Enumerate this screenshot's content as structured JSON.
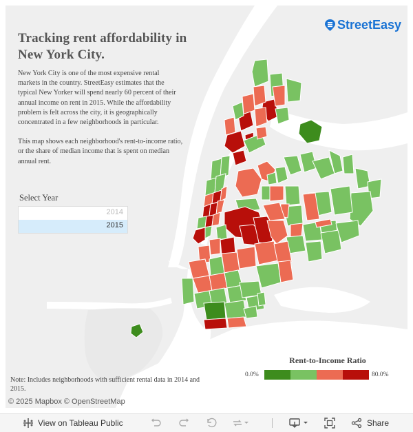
{
  "title": "Tracking rent affordability in New York City.",
  "intro_p1": "New York City is one of the most expensive rental markets in the country. StreetEasy estimates that the typical New Yorker will spend nearly 60 percent of their annual income on rent in 2015. While the affordability problem is felt across the city, it is geographically concentrated in a few neighborhoods in particular.",
  "intro_p2": "This map shows each neighborhood's rent-to-income ratio, or the share of median income that is spent on median annual rent.",
  "logo_text": "StreetEasy",
  "filter": {
    "label": "Select Year",
    "options": [
      {
        "label": "2014",
        "selected": false
      },
      {
        "label": "2015",
        "selected": true
      }
    ]
  },
  "legend": {
    "title": "Rent-to-Income Ratio",
    "min_label": "0.0%",
    "max_label": "80.0%",
    "colors": [
      "#3d8c1d",
      "#79c262",
      "#ec6b53",
      "#b80f0a"
    ]
  },
  "note": "Note: Includes neighborhoods with sufficient rental data in 2014 and 2015.",
  "attribution": "© 2025 Mapbox  © OpenStreetMap",
  "toolbar": {
    "view_label": "View on Tableau Public",
    "share_label": "Share"
  },
  "colors": {
    "very_low": "#3d8c1d",
    "low": "#79c262",
    "high": "#ec6b53",
    "very_high": "#b80f0a",
    "water": "#ffffff",
    "land": "#efefef",
    "brand": "#1a73d4"
  }
}
